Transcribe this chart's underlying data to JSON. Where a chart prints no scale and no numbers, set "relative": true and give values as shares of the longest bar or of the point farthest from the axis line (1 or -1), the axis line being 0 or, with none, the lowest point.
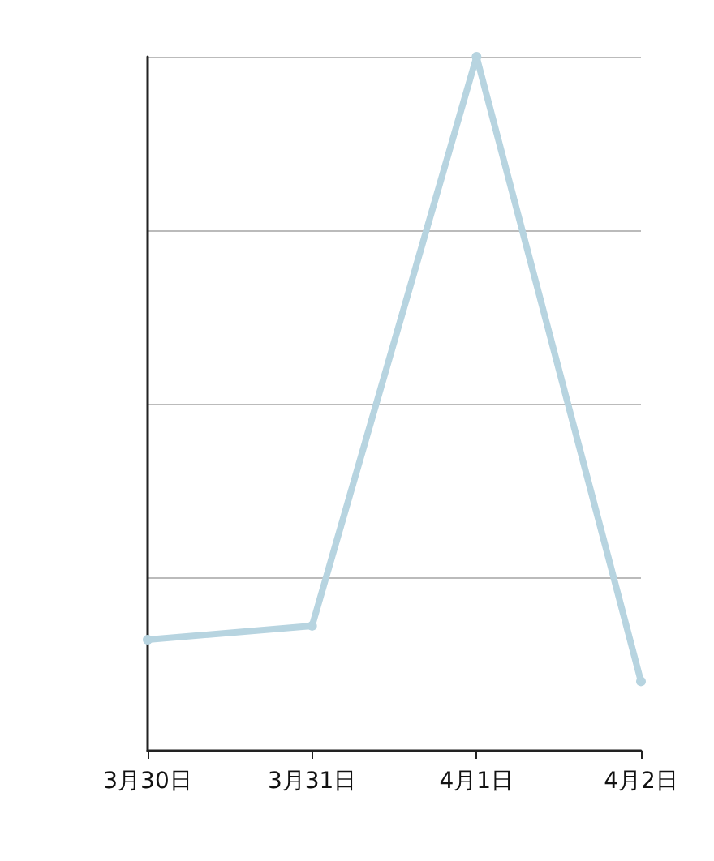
{
  "chart_data": {
    "type": "line",
    "relative": true,
    "categories": [
      "3月30日",
      "3月31日",
      "4月1日",
      "4月2日"
    ],
    "series": [
      {
        "color": "#b7d4e0",
        "values": [
          0.16,
          0.18,
          1,
          0.1
        ]
      }
    ],
    "grid": "y",
    "marker": "circle",
    "line_style": "solid"
  }
}
